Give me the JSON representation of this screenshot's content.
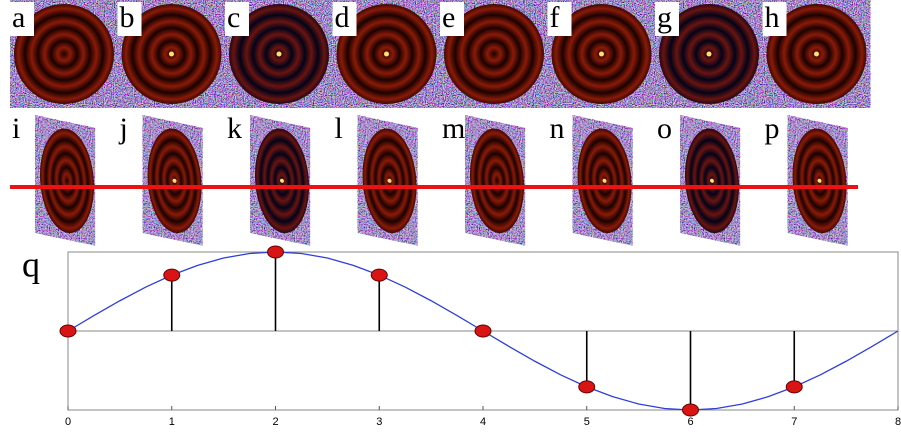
{
  "panels": {
    "top": [
      "a",
      "b",
      "c",
      "d",
      "e",
      "f",
      "g",
      "h"
    ],
    "bottom": [
      "i",
      "j",
      "k",
      "l",
      "m",
      "n",
      "o",
      "p"
    ]
  },
  "chart_data": {
    "type": "stem",
    "label": "q",
    "x": [
      0,
      1,
      2,
      3,
      4,
      5,
      6,
      7
    ],
    "values": [
      0,
      0.707,
      1,
      0.707,
      0,
      -0.707,
      -1,
      -0.707
    ],
    "marker_color": "#d81414",
    "curve": {
      "color": "#2f3fd8",
      "x": [
        0,
        0.25,
        0.5,
        0.75,
        1,
        1.25,
        1.5,
        1.75,
        2,
        2.25,
        2.5,
        2.75,
        3,
        3.25,
        3.5,
        3.75,
        4,
        4.25,
        4.5,
        4.75,
        5,
        5.25,
        5.5,
        5.75,
        6,
        6.25,
        6.5,
        6.75,
        7,
        7.25,
        7.5,
        7.75,
        8
      ],
      "values": [
        0,
        0.195,
        0.383,
        0.556,
        0.707,
        0.831,
        0.924,
        0.981,
        1,
        0.981,
        0.924,
        0.831,
        0.707,
        0.556,
        0.383,
        0.195,
        0,
        -0.195,
        -0.383,
        -0.556,
        -0.707,
        -0.831,
        -0.924,
        -0.981,
        -1,
        -0.981,
        -0.924,
        -0.831,
        -0.707,
        -0.556,
        -0.383,
        -0.195,
        0
      ]
    },
    "xlim": [
      0,
      8
    ],
    "xticks": [
      0,
      1,
      2,
      3,
      4,
      5,
      6,
      7,
      8
    ],
    "ylim": [
      -1,
      1
    ]
  }
}
